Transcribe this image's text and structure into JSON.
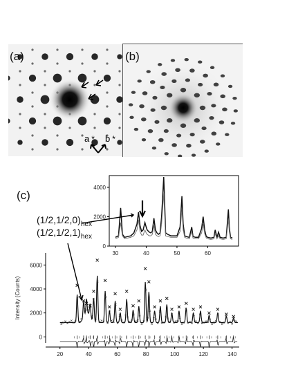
{
  "panel_a": {
    "label": "(a)",
    "axis_a": "a",
    "axis_b": "b",
    "star": "*"
  },
  "panel_b": {
    "label": "(b)"
  },
  "panel_c": {
    "label": "(c)",
    "annotation_line1": "(1/2,1/2,0)",
    "annotation_line2": "(1/2,1/2,1)",
    "annotation_sub": "hex"
  },
  "chart_data": [
    {
      "type": "line",
      "title": "",
      "xlabel": "",
      "ylabel": "",
      "xlim": [
        28,
        70
      ],
      "ylim": [
        0,
        4800
      ],
      "xticks": [
        30,
        40,
        50,
        60
      ],
      "yticks": [
        0,
        2000,
        4000
      ],
      "xtick_labels": [
        "30",
        "40",
        "50",
        "60"
      ],
      "ytick_labels": [
        "0",
        "2000",
        "4000"
      ],
      "series": [
        {
          "x": [
            30,
            31,
            31.7,
            32,
            32.3,
            33,
            34,
            35,
            36,
            37,
            37.5,
            38,
            38.5,
            39,
            39.6,
            40,
            40.3,
            41,
            41.5,
            42,
            42.5,
            43,
            43.5,
            44,
            44.5,
            45,
            45.7,
            46,
            46.3,
            47,
            48,
            49,
            50,
            51,
            51.6,
            52,
            52.5,
            53,
            54,
            54.8,
            55.2,
            56,
            57,
            58,
            58.5,
            59,
            59.5,
            60,
            61,
            62,
            62.4,
            63,
            63.5,
            64,
            65,
            66,
            66.7,
            67,
            67.4,
            68
          ],
          "values": [
            600,
            700,
            2600,
            1700,
            800,
            600,
            650,
            700,
            900,
            1500,
            2300,
            1400,
            1000,
            1100,
            1600,
            1300,
            1100,
            950,
            900,
            1000,
            1900,
            1100,
            900,
            800,
            900,
            2000,
            4700,
            3000,
            900,
            800,
            700,
            700,
            700,
            1300,
            3400,
            1500,
            700,
            650,
            600,
            1300,
            650,
            600,
            600,
            1200,
            2000,
            1100,
            650,
            600,
            550,
            600,
            1100,
            600,
            950,
            600,
            550,
            600,
            2500,
            1300,
            600,
            550
          ]
        },
        {
          "x": [
            30,
            31,
            31.7,
            32,
            32.3,
            33,
            34,
            35,
            36,
            37,
            37.5,
            38,
            38.5,
            39,
            39.6,
            40,
            40.3,
            41,
            41.5,
            42,
            42.5,
            43,
            43.5,
            44,
            44.5,
            45,
            45.7,
            46,
            46.3,
            47,
            48,
            49,
            50,
            51,
            51.6,
            52,
            52.5,
            53,
            54,
            54.8,
            55.2,
            56,
            57,
            58,
            58.5,
            59,
            59.5,
            60,
            61,
            62,
            62.4,
            63,
            63.5,
            64,
            65,
            66,
            66.7,
            67,
            67.4,
            68
          ],
          "values": [
            500,
            600,
            1600,
            1100,
            700,
            500,
            550,
            600,
            700,
            1100,
            1800,
            1000,
            750,
            750,
            1100,
            900,
            800,
            700,
            700,
            800,
            1400,
            800,
            700,
            650,
            700,
            1500,
            3600,
            2200,
            700,
            650,
            600,
            600,
            600,
            1000,
            2500,
            1100,
            600,
            550,
            500,
            1000,
            550,
            500,
            500,
            900,
            1500,
            850,
            550,
            500,
            450,
            500,
            850,
            500,
            700,
            500,
            450,
            500,
            1800,
            1000,
            500,
            450
          ]
        }
      ]
    },
    {
      "type": "scatter",
      "title": "",
      "xlabel": "",
      "ylabel": "Intensity (Counts)",
      "xlim": [
        10,
        145
      ],
      "ylim": [
        -500,
        7000
      ],
      "xticks": [
        20,
        40,
        60,
        80,
        100,
        120,
        140
      ],
      "yticks": [
        0,
        2000,
        4000,
        6000
      ],
      "xtick_labels": [
        "20",
        "40",
        "60",
        "80",
        "100",
        "120",
        "140"
      ],
      "ytick_labels": [
        "0",
        "2000",
        "4000",
        "6000"
      ],
      "background_level": 1200,
      "peaks": [
        {
          "x": 32,
          "y": 4300
        },
        {
          "x": 36.5,
          "y": 3000
        },
        {
          "x": 38.5,
          "y": 2800
        },
        {
          "x": 41,
          "y": 2600
        },
        {
          "x": 43.5,
          "y": 3800
        },
        {
          "x": 46,
          "y": 6400
        },
        {
          "x": 51.5,
          "y": 4700
        },
        {
          "x": 54.5,
          "y": 2500
        },
        {
          "x": 58.5,
          "y": 3600
        },
        {
          "x": 62,
          "y": 2300
        },
        {
          "x": 66.5,
          "y": 3800
        },
        {
          "x": 71,
          "y": 2600
        },
        {
          "x": 75,
          "y": 3000
        },
        {
          "x": 79.5,
          "y": 5700
        },
        {
          "x": 82,
          "y": 4600
        },
        {
          "x": 86,
          "y": 2500
        },
        {
          "x": 90,
          "y": 3000
        },
        {
          "x": 94.5,
          "y": 3200
        },
        {
          "x": 98,
          "y": 2300
        },
        {
          "x": 103,
          "y": 2500
        },
        {
          "x": 108,
          "y": 2800
        },
        {
          "x": 113,
          "y": 2300
        },
        {
          "x": 118,
          "y": 2500
        },
        {
          "x": 124,
          "y": 2000
        },
        {
          "x": 130,
          "y": 2300
        },
        {
          "x": 136,
          "y": 1900
        },
        {
          "x": 141,
          "y": 1700
        }
      ]
    }
  ]
}
